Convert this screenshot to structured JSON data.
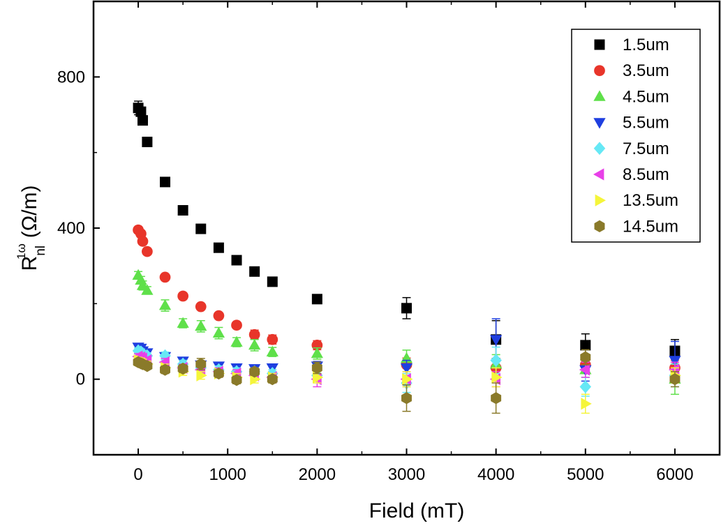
{
  "chart_data": {
    "type": "scatter",
    "xlabel": "Field (mT)",
    "ylabel": {
      "base": "R",
      "superscript": "1ω",
      "subscript": "nl",
      "unit": "(Ω/m)"
    },
    "xlim": [
      -500,
      6500
    ],
    "ylim": [
      -200,
      1000
    ],
    "xticks": [
      0,
      1000,
      2000,
      3000,
      4000,
      5000,
      6000
    ],
    "yticks": [
      0,
      400,
      800
    ],
    "legend_position": "top-right",
    "grid": false,
    "series": [
      {
        "name": "1.5um",
        "marker": "square",
        "color": "#000000",
        "x": [
          0,
          30,
          50,
          100,
          300,
          500,
          700,
          900,
          1100,
          1300,
          1500,
          2000,
          3000,
          4000,
          5000,
          6000
        ],
        "y": [
          718,
          708,
          685,
          628,
          522,
          447,
          398,
          348,
          315,
          285,
          258,
          212,
          188,
          105,
          90,
          75
        ],
        "err": [
          18,
          10,
          8,
          6,
          6,
          6,
          6,
          6,
          6,
          6,
          6,
          8,
          28,
          50,
          30,
          30
        ]
      },
      {
        "name": "3.5um",
        "marker": "circle",
        "color": "#e8352a",
        "x": [
          0,
          30,
          50,
          100,
          300,
          500,
          700,
          900,
          1100,
          1300,
          1500,
          2000,
          3000,
          4000,
          5000,
          6000
        ],
        "y": [
          395,
          385,
          365,
          338,
          270,
          220,
          192,
          168,
          143,
          118,
          105,
          90,
          38,
          30,
          38,
          30
        ],
        "err": [
          8,
          6,
          6,
          6,
          6,
          6,
          6,
          6,
          6,
          12,
          12,
          12,
          18,
          20,
          22,
          20
        ]
      },
      {
        "name": "4.5um",
        "marker": "triangle-up",
        "color": "#5fe04a",
        "x": [
          0,
          30,
          50,
          100,
          300,
          500,
          700,
          900,
          1100,
          1300,
          1500,
          2000,
          3000,
          4000,
          5000,
          6000
        ],
        "y": [
          275,
          262,
          248,
          235,
          195,
          148,
          140,
          122,
          98,
          90,
          72,
          68,
          55,
          40,
          25,
          0
        ],
        "err": [
          10,
          10,
          12,
          10,
          15,
          12,
          15,
          15,
          12,
          15,
          12,
          15,
          22,
          25,
          20,
          40
        ]
      },
      {
        "name": "5.5um",
        "marker": "triangle-down",
        "color": "#1f3fe0",
        "x": [
          0,
          30,
          50,
          100,
          300,
          500,
          700,
          900,
          1100,
          1300,
          1500,
          2000,
          3000,
          4000,
          5000,
          6000
        ],
        "y": [
          85,
          82,
          75,
          70,
          60,
          48,
          38,
          35,
          30,
          28,
          30,
          35,
          30,
          105,
          25,
          50
        ],
        "err": [
          8,
          8,
          8,
          8,
          8,
          8,
          10,
          10,
          10,
          10,
          10,
          12,
          20,
          55,
          30,
          50
        ]
      },
      {
        "name": "7.5um",
        "marker": "diamond",
        "color": "#66e8f5",
        "x": [
          0,
          30,
          50,
          100,
          300,
          500,
          700,
          900,
          1100,
          1300,
          1500,
          2000,
          3000,
          4000,
          5000,
          6000
        ],
        "y": [
          75,
          72,
          68,
          62,
          62,
          40,
          30,
          25,
          20,
          20,
          15,
          10,
          -10,
          50,
          -20,
          10
        ],
        "err": [
          8,
          8,
          8,
          8,
          10,
          10,
          10,
          10,
          10,
          10,
          10,
          15,
          25,
          35,
          25,
          30
        ]
      },
      {
        "name": "8.5um",
        "marker": "triangle-left",
        "color": "#e840e8",
        "x": [
          0,
          30,
          50,
          100,
          300,
          500,
          700,
          900,
          1100,
          1300,
          1500,
          2000,
          3000,
          4000,
          5000,
          6000
        ],
        "y": [
          60,
          58,
          55,
          50,
          45,
          30,
          25,
          20,
          15,
          10,
          5,
          0,
          0,
          0,
          25,
          25
        ],
        "err": [
          8,
          8,
          8,
          8,
          10,
          10,
          10,
          10,
          10,
          10,
          10,
          20,
          20,
          20,
          20,
          20
        ]
      },
      {
        "name": "13.5um",
        "marker": "triangle-right",
        "color": "#f5f53a",
        "x": [
          0,
          30,
          50,
          100,
          300,
          500,
          700,
          900,
          1100,
          1300,
          1500,
          2000,
          3000,
          4000,
          5000,
          6000
        ],
        "y": [
          50,
          48,
          45,
          40,
          30,
          20,
          10,
          15,
          5,
          0,
          5,
          5,
          0,
          5,
          -65,
          10
        ],
        "err": [
          8,
          8,
          8,
          8,
          10,
          10,
          10,
          10,
          10,
          10,
          10,
          15,
          20,
          25,
          25,
          20
        ]
      },
      {
        "name": "14.5um",
        "marker": "hexagon",
        "color": "#8a7a2a",
        "x": [
          0,
          30,
          50,
          100,
          300,
          500,
          700,
          900,
          1100,
          1300,
          1500,
          2000,
          3000,
          4000,
          5000,
          6000
        ],
        "y": [
          45,
          42,
          40,
          35,
          25,
          28,
          40,
          15,
          -2,
          20,
          0,
          30,
          -50,
          -50,
          58,
          0
        ],
        "err": [
          8,
          8,
          8,
          8,
          10,
          10,
          15,
          10,
          10,
          10,
          10,
          15,
          35,
          40,
          20,
          20
        ]
      }
    ]
  }
}
